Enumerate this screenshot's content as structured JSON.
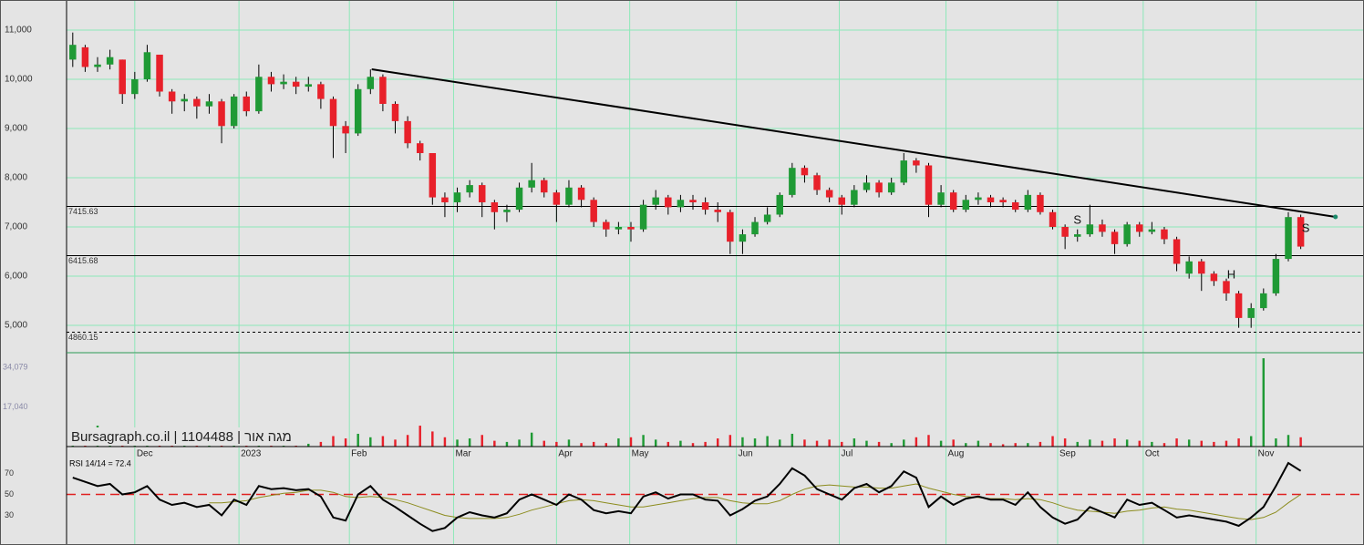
{
  "chart_data": [
    {
      "type": "candlestick",
      "xlim": [
        -0.5,
        104.1
      ],
      "xticks": [
        {
          "value": 5.0,
          "label": "Dec"
        },
        {
          "value": 13.4,
          "label": "2023"
        },
        {
          "value": 22.3,
          "label": "Feb"
        },
        {
          "value": 30.7,
          "label": "Mar"
        },
        {
          "value": 39.0,
          "label": "Apr"
        },
        {
          "value": 44.9,
          "label": "May"
        },
        {
          "value": 53.5,
          "label": "Jun"
        },
        {
          "value": 61.8,
          "label": "Jul"
        },
        {
          "value": 70.4,
          "label": "Aug"
        },
        {
          "value": 79.4,
          "label": "Sep"
        },
        {
          "value": 86.3,
          "label": "Oct"
        },
        {
          "value": 95.4,
          "label": "Nov"
        }
      ],
      "ylim": [
        4444,
        11611
      ],
      "yticks": [
        {
          "value": 5000,
          "label": "5,000"
        },
        {
          "value": 6000,
          "label": "6,000"
        },
        {
          "value": 7000,
          "label": "7,000"
        },
        {
          "value": 8000,
          "label": "8,000"
        },
        {
          "value": 9000,
          "label": "9,000"
        },
        {
          "value": 10000,
          "label": "10,000"
        },
        {
          "value": 11000,
          "label": "11,000"
        }
      ],
      "grid": true,
      "up_color": "#1f9a35",
      "down_color": "#e8202a",
      "open": [
        10400,
        10650,
        10250,
        10300,
        10400,
        9700,
        10000,
        10500,
        9750,
        9550,
        9600,
        9450,
        9550,
        9050,
        9650,
        9350,
        10050,
        9900,
        9950,
        9850,
        9900,
        9600,
        9050,
        8900,
        9800,
        10050,
        9500,
        9150,
        8700,
        8500,
        7600,
        7500,
        7700,
        7850,
        7500,
        7300,
        7350,
        7800,
        7950,
        7700,
        7450,
        7800,
        7550,
        7100,
        6950,
        7000,
        6950,
        7450,
        7600,
        7400,
        7550,
        7500,
        7350,
        7300,
        6700,
        6850,
        7100,
        7250,
        7650,
        8200,
        8050,
        7750,
        7600,
        7450,
        7750,
        7900,
        7700,
        7900,
        8350,
        8250,
        7450,
        7700,
        7350,
        7550,
        7600,
        7550,
        7500,
        7350,
        7650,
        7300,
        7000,
        6800,
        6850,
        7050,
        6900,
        6650,
        7050,
        6900,
        6950,
        6750,
        6050,
        6300,
        6050,
        5900,
        5650,
        5150,
        5350,
        5650,
        6350,
        7200
      ],
      "high": [
        10950,
        10700,
        10450,
        10600,
        10400,
        10150,
        10700,
        10500,
        9800,
        9700,
        9650,
        9700,
        9600,
        9700,
        9750,
        10300,
        10150,
        10100,
        10050,
        10050,
        9950,
        9650,
        9150,
        9900,
        10200,
        10100,
        9550,
        9250,
        8750,
        8500,
        7700,
        7800,
        7950,
        7900,
        7550,
        7450,
        7900,
        8300,
        8000,
        7750,
        7950,
        7850,
        7600,
        7150,
        7100,
        7100,
        7550,
        7750,
        7650,
        7650,
        7650,
        7600,
        7500,
        7350,
        6950,
        7200,
        7400,
        7700,
        8300,
        8250,
        8100,
        7800,
        7650,
        7850,
        8050,
        7950,
        8000,
        8500,
        8400,
        8300,
        7850,
        7750,
        7650,
        7700,
        7650,
        7600,
        7550,
        7750,
        7700,
        7350,
        7050,
        6950,
        7450,
        7150,
        6950,
        7100,
        7100,
        7100,
        7000,
        6800,
        6400,
        6350,
        6100,
        5950,
        5700,
        5450,
        5750,
        6450,
        7300,
        7250
      ],
      "low": [
        10250,
        10150,
        10150,
        10200,
        9500,
        9600,
        9950,
        9650,
        9300,
        9350,
        9200,
        9300,
        8700,
        9000,
        9250,
        9300,
        9750,
        9800,
        9700,
        9750,
        9400,
        8400,
        8500,
        8850,
        9700,
        9350,
        8900,
        8600,
        8350,
        7450,
        7200,
        7300,
        7600,
        7200,
        6950,
        7100,
        7300,
        7700,
        7600,
        7100,
        7400,
        7400,
        7000,
        6800,
        6850,
        6700,
        6900,
        7350,
        7250,
        7300,
        7350,
        7250,
        7100,
        6450,
        6450,
        6800,
        7050,
        7200,
        7600,
        7900,
        7650,
        7500,
        7250,
        7400,
        7700,
        7600,
        7650,
        7850,
        8100,
        7200,
        7400,
        7300,
        7300,
        7450,
        7400,
        7400,
        7300,
        7300,
        7250,
        6950,
        6550,
        6700,
        6800,
        6800,
        6450,
        6600,
        6800,
        6850,
        6650,
        6100,
        5950,
        5700,
        5800,
        5500,
        4950,
        4950,
        5300,
        5600,
        6300,
        6550
      ],
      "close": [
        10700,
        10250,
        10300,
        10450,
        9700,
        10000,
        10550,
        9750,
        9550,
        9600,
        9450,
        9550,
        9050,
        9650,
        9350,
        10050,
        9900,
        9950,
        9850,
        9900,
        9600,
        9050,
        8900,
        9800,
        10050,
        9500,
        9150,
        8700,
        8500,
        7600,
        7500,
        7700,
        7850,
        7500,
        7300,
        7350,
        7800,
        7950,
        7700,
        7450,
        7800,
        7550,
        7100,
        6950,
        7000,
        6950,
        7450,
        7600,
        7400,
        7550,
        7500,
        7350,
        7300,
        6700,
        6850,
        7100,
        7250,
        7650,
        8200,
        8050,
        7750,
        7600,
        7450,
        7750,
        7900,
        7700,
        7900,
        8350,
        8250,
        7450,
        7700,
        7350,
        7550,
        7600,
        7500,
        7500,
        7350,
        7650,
        7300,
        7000,
        6800,
        6850,
        7050,
        6900,
        6650,
        7050,
        6900,
        6950,
        6750,
        6250,
        6300,
        6050,
        5900,
        5650,
        5150,
        5350,
        5650,
        6350,
        7200,
        6600
      ],
      "levels": [
        7415.63,
        6415.68,
        4860.15
      ],
      "level_dashed": [
        false,
        false,
        true
      ],
      "trendline": {
        "x": [
          24.1,
          101.8
        ],
        "y": [
          10204,
          7204
        ]
      },
      "annotations": [
        {
          "text": "S",
          "x": 81,
          "y": 7130
        },
        {
          "text": "H",
          "x": 93.4,
          "y": 6019
        },
        {
          "text": "S",
          "x": 99.4,
          "y": 6963
        }
      ]
    },
    {
      "type": "volume",
      "watermark": "Bursagraph.co.il | 1104488 | מגה אור",
      "ylim": [
        0,
        40000
      ],
      "yticks": [
        {
          "value": 17040,
          "label": "17,040"
        },
        {
          "value": 34079,
          "label": "34,079"
        }
      ],
      "values": [
        3500,
        2000,
        9000,
        1500,
        1200,
        2500,
        1800,
        1000,
        1500,
        1200,
        1300,
        1100,
        2000,
        3500,
        4000,
        2500,
        3500,
        1800,
        1500,
        1200,
        2000,
        4500,
        3500,
        5500,
        4000,
        4500,
        3000,
        5000,
        9000,
        6500,
        4000,
        3000,
        3500,
        5000,
        2500,
        2000,
        3000,
        6000,
        2500,
        2000,
        3000,
        1500,
        2000,
        1500,
        3500,
        4000,
        5000,
        3000,
        2000,
        2500,
        1500,
        2000,
        3500,
        5000,
        4000,
        3500,
        4500,
        3000,
        5500,
        3000,
        2500,
        3000,
        2000,
        3500,
        2500,
        2000,
        1500,
        3000,
        4000,
        5000,
        2500,
        3000,
        1500,
        2500,
        1500,
        1000,
        1500,
        1500,
        2000,
        4500,
        3500,
        2000,
        3000,
        2500,
        3500,
        3000,
        2500,
        2000,
        1500,
        3500,
        3000,
        2500,
        2000,
        2500,
        3500,
        4500,
        38000,
        3500,
        5000,
        4000
      ]
    },
    {
      "type": "line",
      "title": "RSI 14/14 = 72.4",
      "ylim": [
        1.7,
        94.8
      ],
      "yticks": [
        30,
        50,
        70
      ],
      "ref_line": 50,
      "ref_color": "#e02020",
      "series": [
        {
          "color": "#000000",
          "values": [
            66,
            62,
            58,
            60,
            50,
            52,
            58,
            45,
            40,
            42,
            38,
            40,
            30,
            45,
            40,
            58,
            55,
            56,
            54,
            55,
            48,
            28,
            25,
            50,
            58,
            45,
            38,
            30,
            22,
            15,
            18,
            28,
            33,
            30,
            28,
            32,
            45,
            50,
            45,
            40,
            50,
            45,
            35,
            32,
            34,
            32,
            48,
            52,
            46,
            50,
            50,
            45,
            44,
            30,
            36,
            44,
            48,
            60,
            75,
            68,
            55,
            50,
            45,
            56,
            60,
            52,
            58,
            72,
            66,
            38,
            48,
            40,
            46,
            48,
            45,
            45,
            40,
            52,
            38,
            28,
            22,
            26,
            38,
            33,
            28,
            45,
            40,
            42,
            35,
            28,
            30,
            28,
            26,
            24,
            20,
            28,
            38,
            58,
            80,
            72.4
          ]
        },
        {
          "color": "#8c8c1e",
          "values": [
            null,
            null,
            null,
            null,
            null,
            null,
            null,
            null,
            null,
            null,
            null,
            42,
            42,
            43,
            44,
            47,
            49,
            51,
            52,
            54,
            54,
            52,
            48,
            47,
            48,
            47,
            45,
            42,
            38,
            34,
            30,
            28,
            27,
            27,
            27,
            28,
            31,
            35,
            38,
            41,
            44,
            45,
            44,
            42,
            40,
            38,
            38,
            40,
            42,
            44,
            46,
            47,
            47,
            44,
            42,
            41,
            41,
            44,
            50,
            55,
            58,
            59,
            58,
            57,
            57,
            56,
            56,
            58,
            60,
            56,
            53,
            50,
            48,
            47,
            46,
            46,
            45,
            46,
            45,
            42,
            38,
            35,
            34,
            33,
            32,
            34,
            35,
            37,
            38,
            36,
            35,
            33,
            31,
            29,
            27,
            26,
            28,
            33,
            42,
            50
          ]
        }
      ]
    }
  ]
}
